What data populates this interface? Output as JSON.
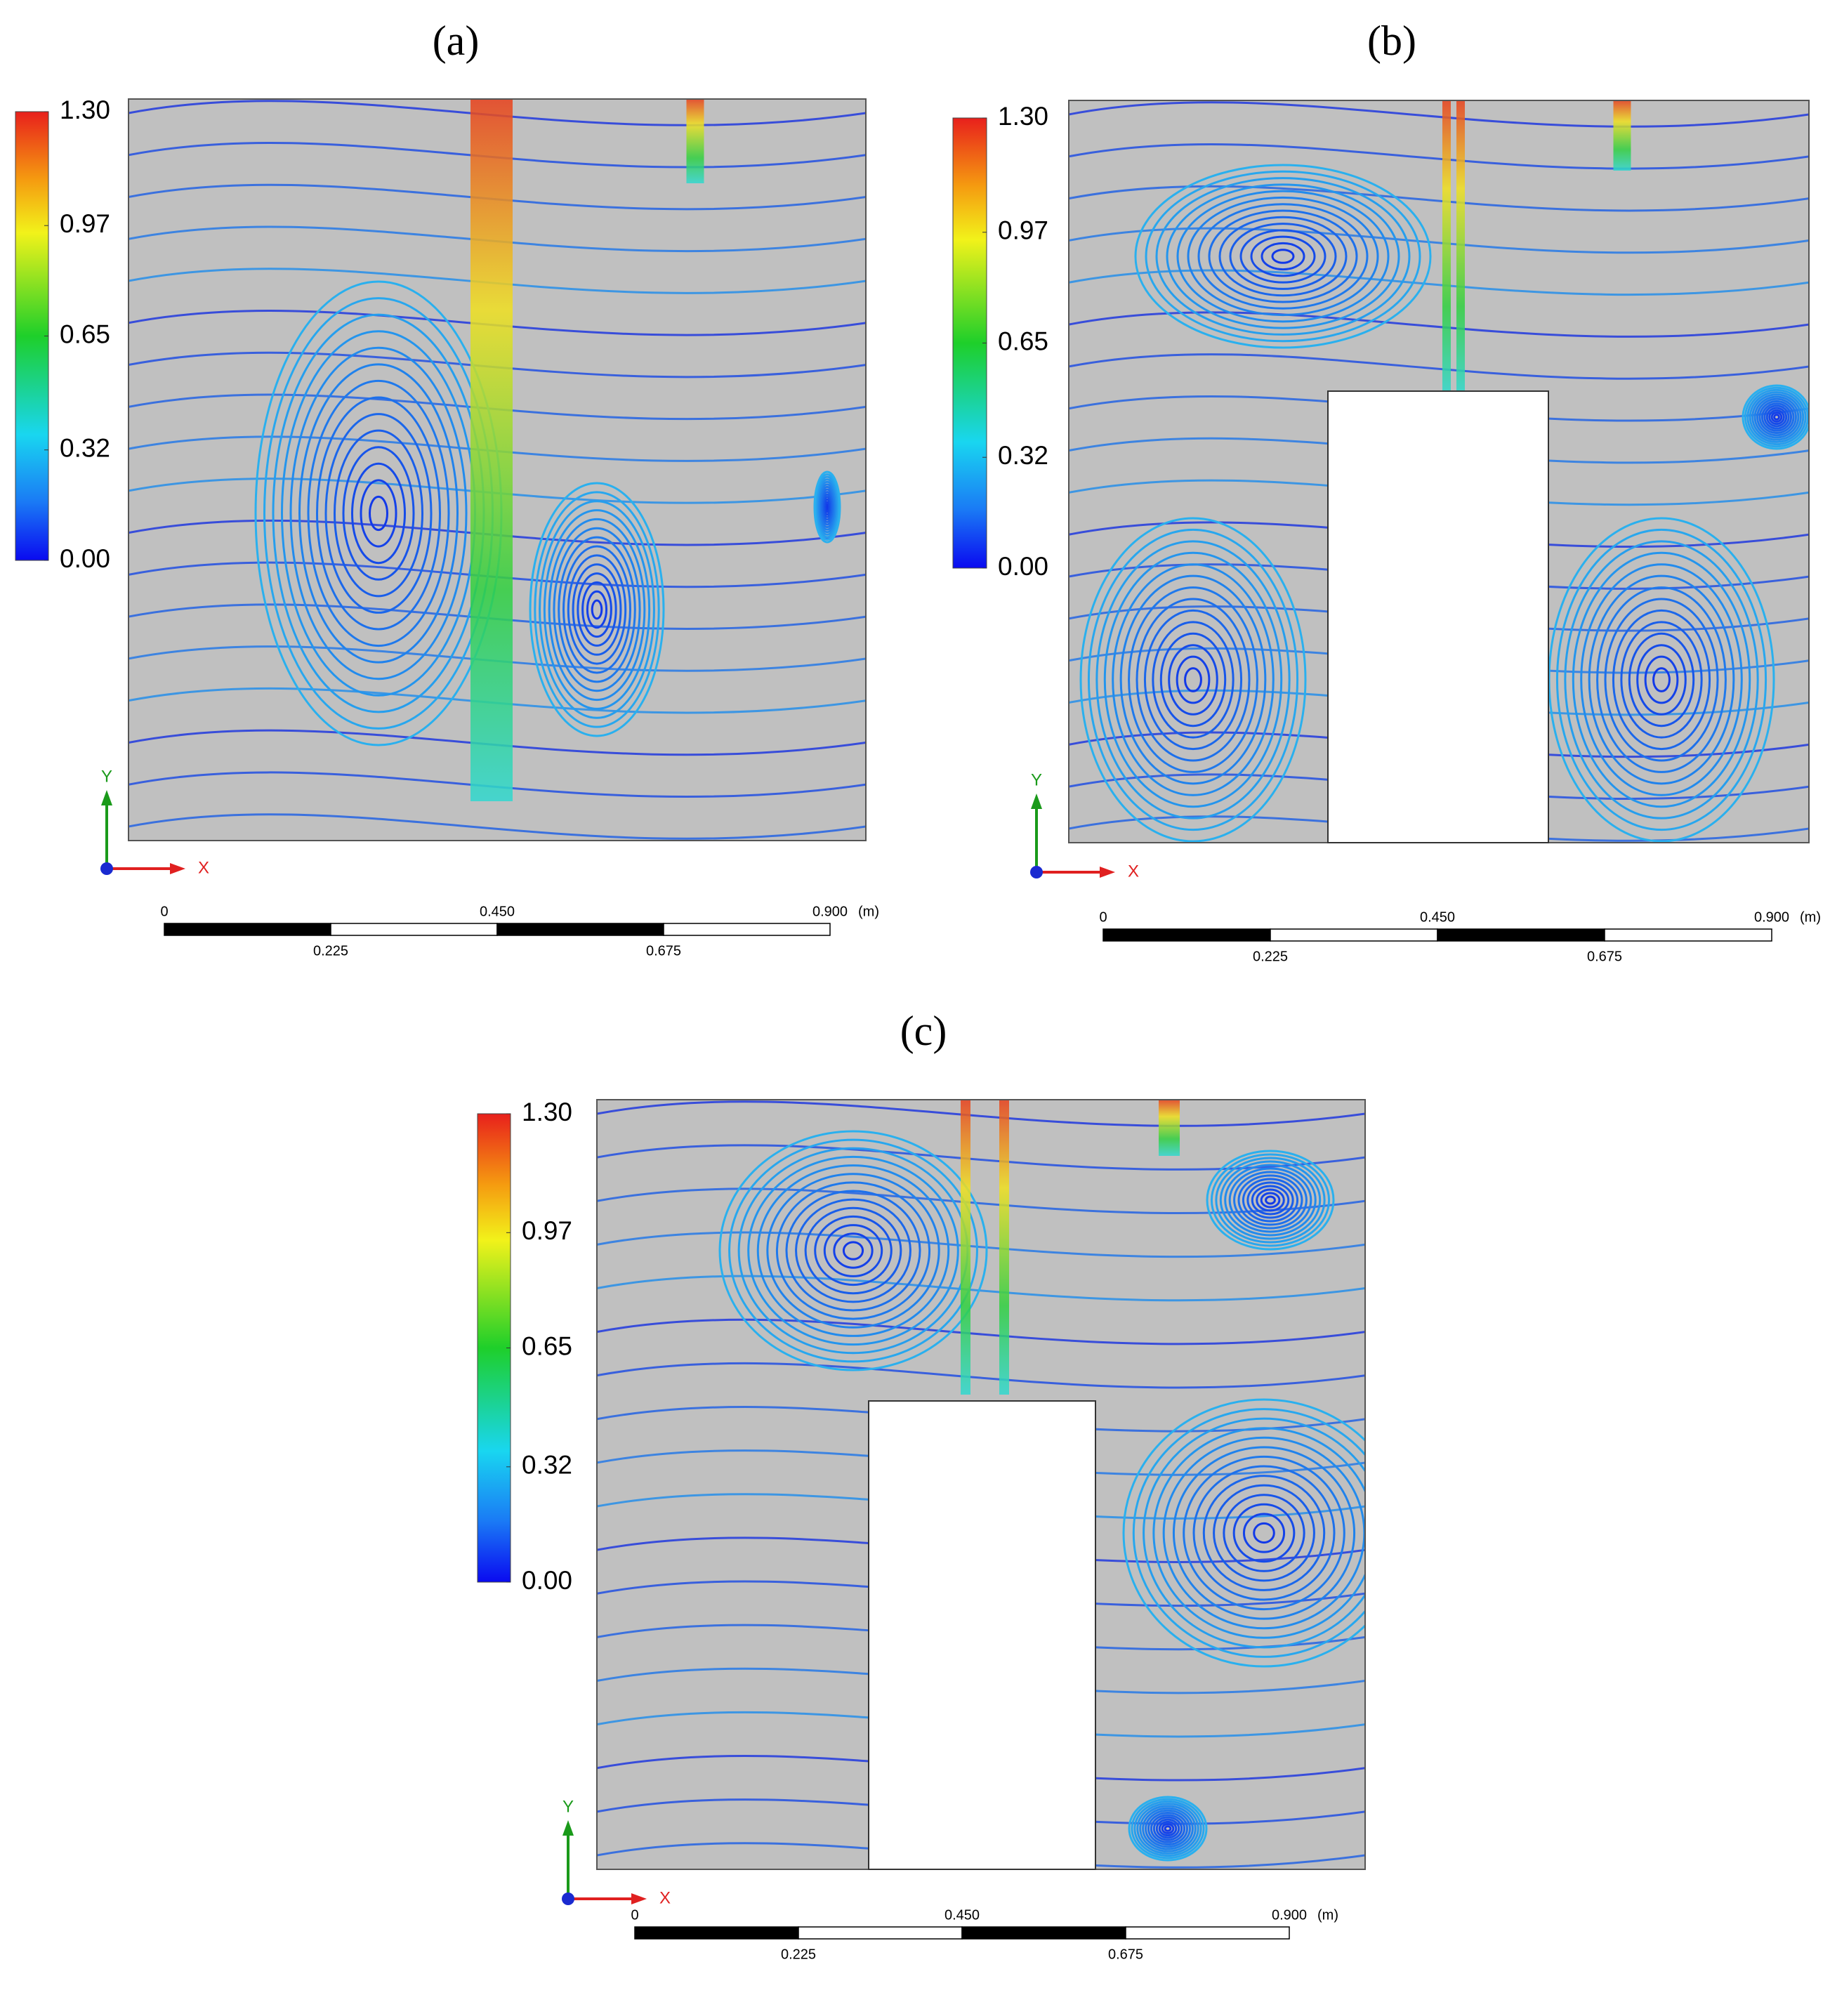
{
  "panels": [
    {
      "label": "(a)",
      "colorbar": {
        "ticks": [
          {
            "value": 1.3,
            "label": "1.30"
          },
          {
            "value": 0.97,
            "label": "0.97"
          },
          {
            "value": 0.65,
            "label": "0.65"
          },
          {
            "value": 0.32,
            "label": "0.32"
          },
          {
            "value": 0,
            "label": "0.00"
          }
        ]
      },
      "scale_bar": {
        "ticks": [
          0,
          0.225,
          {
            "value": 0.45,
            "label": "0.450"
          },
          0.675,
          {
            "value": 0.9,
            "label": "0.900"
          }
        ],
        "unit": "(m)"
      },
      "axes": {
        "x": "X",
        "y": "Y"
      }
    },
    {
      "label": "(b)",
      "colorbar": {
        "ticks": [
          {
            "value": 1.3,
            "label": "1.30"
          },
          {
            "value": 0.97,
            "label": "0.97"
          },
          {
            "value": 0.65,
            "label": "0.65"
          },
          {
            "value": 0.32,
            "label": "0.32"
          },
          {
            "value": 0,
            "label": "0.00"
          }
        ]
      },
      "scale_bar": {
        "ticks": [
          0,
          0.225,
          {
            "value": 0.45,
            "label": "0.450"
          },
          0.675,
          {
            "value": 0.9,
            "label": "0.900"
          }
        ],
        "unit": "(m)"
      },
      "axes": {
        "x": "X",
        "y": "Y"
      }
    },
    {
      "label": "(c)",
      "colorbar": {
        "ticks": [
          {
            "value": 1.3,
            "label": "1.30"
          },
          {
            "value": 0.97,
            "label": "0.97"
          },
          {
            "value": 0.65,
            "label": "0.65"
          },
          {
            "value": 0.32,
            "label": "0.32"
          },
          {
            "value": 0,
            "label": "0.00"
          }
        ]
      },
      "scale_bar": {
        "ticks": [
          0,
          0.225,
          {
            "value": 0.45,
            "label": "0.450"
          },
          0.675,
          {
            "value": 0.9,
            "label": "0.900"
          }
        ],
        "unit": "(m)"
      },
      "axes": {
        "x": "X",
        "y": "Y"
      }
    }
  ]
}
